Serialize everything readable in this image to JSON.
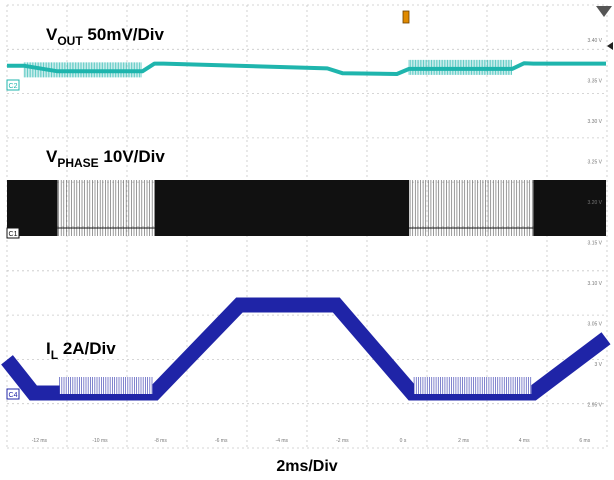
{
  "chart_data": {
    "type": "line",
    "title": "",
    "timebase": "2ms/Div",
    "x_tick_labels": [
      "-12 ms",
      "-10 ms",
      "-8 ms",
      "-6 ms",
      "-4 ms",
      "-2 ms",
      "0 s",
      "2 ms",
      "4 ms",
      "6 ms"
    ],
    "right_tick_labels": [
      "3.40 V",
      "3.35 V",
      "3.30 V",
      "3.25 V",
      "3.20 V",
      "3.15 V",
      "3.10 V",
      "3.05 V",
      "3 V",
      "2.95 V"
    ],
    "grid": true,
    "series": [
      {
        "name_main": "V",
        "name_sub": "OUT",
        "scale": "50mV/Div",
        "marker": "C2",
        "color": "#1fb5ad",
        "t_ms": [
          -13.5,
          -12.5,
          -11.4,
          -8.6,
          -8.2,
          -7.9,
          -2.5,
          -2.0,
          -0.2,
          0.2,
          3.6,
          4.0,
          4.3,
          6.7
        ],
        "level": [
          0.05,
          0.05,
          -0.18,
          -0.18,
          0.14,
          0.14,
          -0.06,
          -0.26,
          -0.29,
          -0.08,
          -0.08,
          0.16,
          0.14,
          0.14
        ]
      },
      {
        "name_main": "V",
        "name_sub": "PHASE",
        "scale": "10V/Div",
        "marker": "C1",
        "color": "#111111",
        "t_ms": [
          -13.5,
          -11.4,
          -8.2,
          0.2,
          4.3,
          6.7
        ],
        "mode": [
          "full",
          "burst",
          "full",
          "burst",
          "full",
          "full"
        ]
      },
      {
        "name_main": "I",
        "name_sub": "L",
        "scale": "2A/Div",
        "marker": "C4",
        "color": "#1f24a7",
        "t_ms": [
          -13.5,
          -12.2,
          -11.4,
          -8.2,
          -5.4,
          -2.2,
          0.3,
          4.3,
          6.7
        ],
        "i_amps": [
          2.0,
          0.0,
          0.0,
          0.0,
          5.3,
          5.3,
          0.0,
          0.0,
          3.3
        ]
      }
    ]
  }
}
